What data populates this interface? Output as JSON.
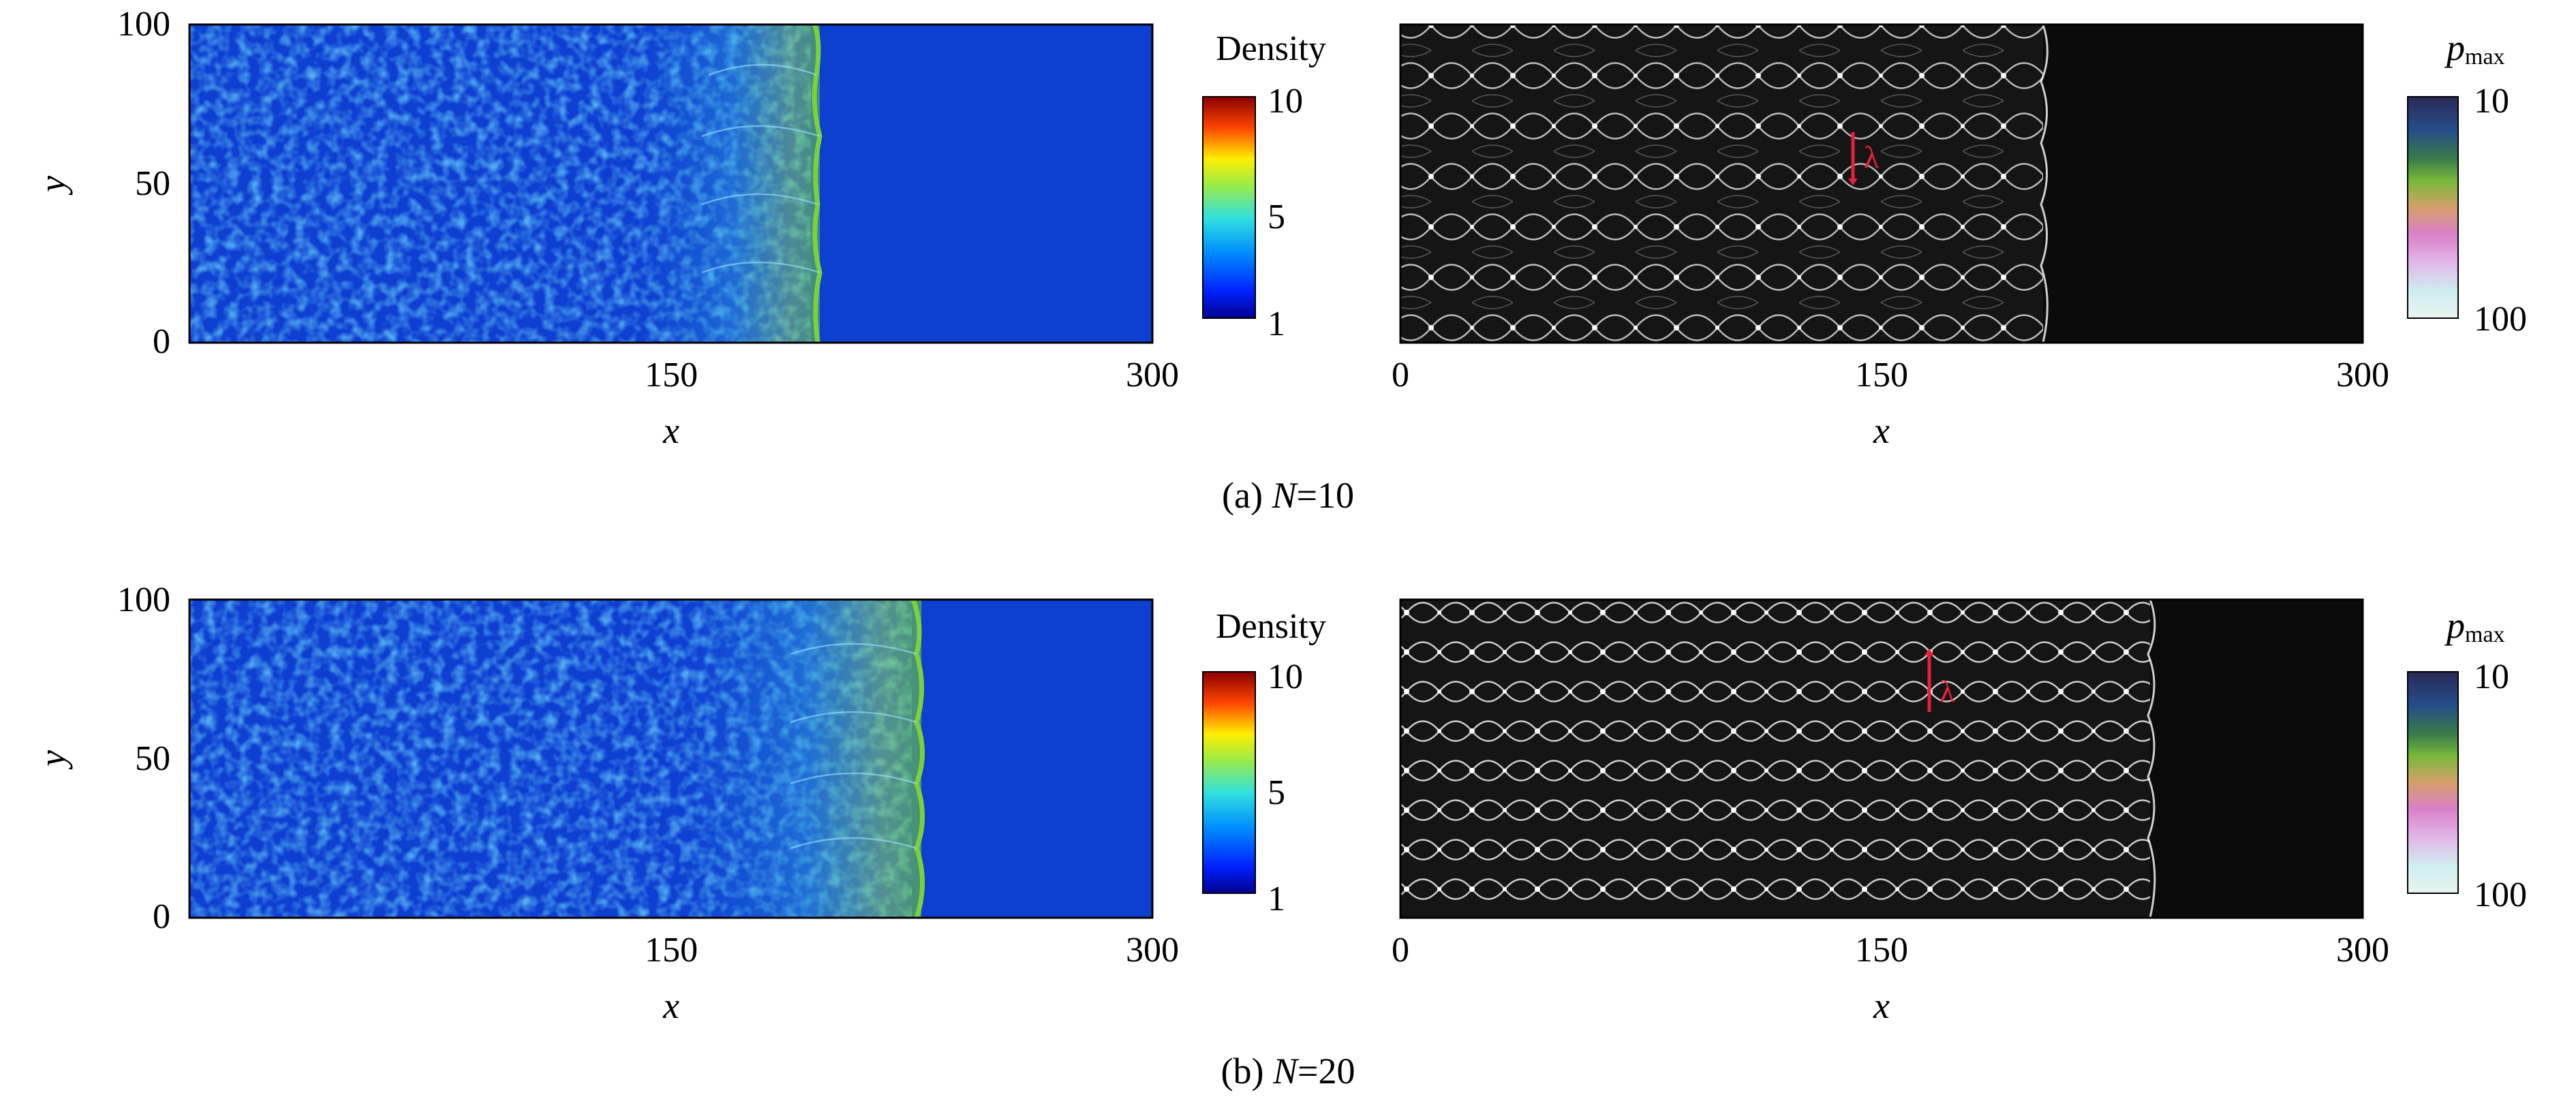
{
  "panels": [
    {
      "id": "a",
      "caption_prefix": "(a) ",
      "caption_var": "N",
      "caption_value": "=10",
      "left_plot": {
        "xlabel": "x",
        "ylabel": "y",
        "xticks": [
          "150",
          "300"
        ],
        "yticks": [
          "100",
          "50",
          "0"
        ],
        "front_x": 196
      },
      "density_colorbar": {
        "title": "Density",
        "ticks": [
          "10",
          "5",
          "1"
        ]
      },
      "right_plot": {
        "xlabel": "x",
        "xticks": [
          "0",
          "150",
          "300"
        ],
        "front_x": 196,
        "annotation": "λ"
      },
      "pmax_colorbar": {
        "title_main": "p",
        "title_sub": "max",
        "ticks": [
          "10",
          "100"
        ]
      }
    },
    {
      "id": "b",
      "caption_prefix": "(b) ",
      "caption_var": "N",
      "caption_value": "=20",
      "left_plot": {
        "xlabel": "x",
        "ylabel": "y",
        "xticks": [
          "150",
          "300"
        ],
        "yticks": [
          "100",
          "50",
          "0"
        ],
        "front_x": 231
      },
      "density_colorbar": {
        "title": "Density",
        "ticks": [
          "10",
          "5",
          "1"
        ]
      },
      "right_plot": {
        "xlabel": "x",
        "xticks": [
          "0",
          "150",
          "300"
        ],
        "front_x": 231,
        "annotation": "λ"
      },
      "pmax_colorbar": {
        "title_main": "p",
        "title_sub": "max",
        "ticks": [
          "10",
          "100"
        ]
      }
    }
  ],
  "colors": {
    "density_background": "#0d3fd1",
    "density_front": "#5fcf3a",
    "cellular_background": "#111111",
    "cellular_lines": "#f2f2f2",
    "lambda_marker": "#e8203c"
  }
}
